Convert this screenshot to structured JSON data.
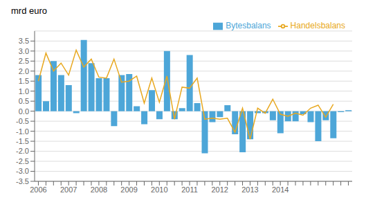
{
  "chart_data": {
    "type": "bar",
    "title": "mrd euro",
    "categories": [
      "2006",
      null,
      null,
      null,
      "2007",
      null,
      null,
      null,
      "2008",
      null,
      null,
      null,
      "2009",
      null,
      null,
      null,
      "2010",
      null,
      null,
      null,
      "2011",
      null,
      null,
      null,
      "2012",
      null,
      null,
      null,
      "2013",
      null,
      null,
      null,
      "2014",
      null,
      null,
      null,
      null,
      null,
      null,
      null,
      null,
      null
    ],
    "series": [
      {
        "name": "Bytesbalans",
        "type": "bar",
        "color": "#4da6d8",
        "values": [
          1.8,
          0.5,
          2.5,
          1.8,
          1.3,
          -0.1,
          3.55,
          2.4,
          1.65,
          1.65,
          -0.75,
          1.8,
          1.85,
          0.25,
          -0.65,
          1.05,
          -0.4,
          3.0,
          -0.4,
          0.15,
          2.8,
          0.4,
          -2.1,
          -0.55,
          -0.3,
          0.3,
          -1.15,
          -2.05,
          -1.4,
          -0.1,
          -0.1,
          -0.45,
          -1.1,
          -0.5,
          -0.5,
          -0.15,
          -0.55,
          -1.5,
          -0.45,
          -1.35,
          -0.05,
          0.05
        ]
      },
      {
        "name": "Handelsbalans",
        "type": "line",
        "color": "#e8a820",
        "values": [
          1.5,
          2.9,
          2.0,
          2.4,
          1.8,
          3.05,
          2.2,
          2.6,
          1.7,
          1.65,
          2.6,
          1.45,
          1.5,
          1.75,
          0.4,
          1.65,
          0.45,
          1.75,
          -0.4,
          1.2,
          1.15,
          1.65,
          -0.4,
          -0.35,
          -0.4,
          -0.35,
          -1.05,
          0.15,
          -1.4,
          0.15,
          -0.1,
          0.6,
          -0.15,
          -0.25,
          -0.1,
          -0.2,
          0.15,
          0.3,
          -0.3,
          0.35,
          null,
          null
        ]
      }
    ],
    "ylim": [
      -3.5,
      4.0
    ],
    "yticks": [
      -3.5,
      {
        "value": -3,
        "label": "-3.0"
      },
      -2.5,
      {
        "value": -2,
        "label": "-2.0"
      },
      -1.5,
      {
        "value": -1,
        "label": "-1.0"
      },
      -0.5,
      {
        "value": 0,
        "label": "0.0"
      },
      0.5,
      {
        "value": 1,
        "label": "1.0"
      },
      1.5,
      {
        "value": 2,
        "label": "2.0"
      },
      2.5,
      {
        "value": 3,
        "label": "3.0"
      },
      3.5
    ],
    "grid": true,
    "legend": "upper right"
  }
}
